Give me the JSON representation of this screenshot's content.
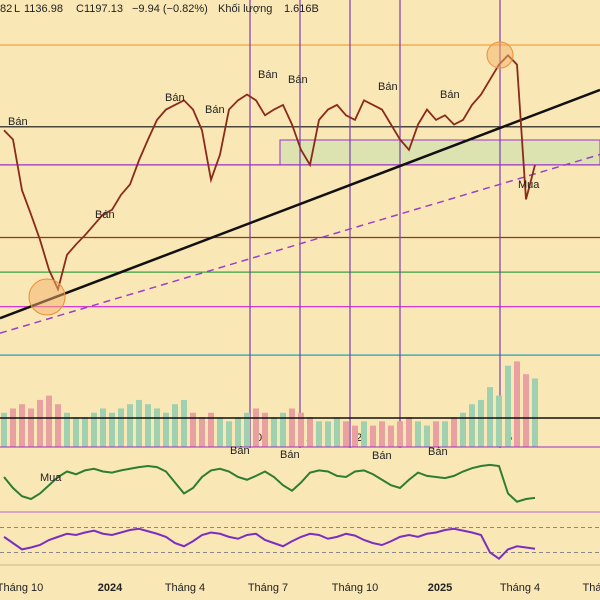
{
  "header": [
    "82",
    "L",
    "1136.98",
    "C",
    "1197.13",
    "−9.94 (−0.82%)",
    "Khối lượng",
    "1.616B"
  ],
  "x_axis_labels": [
    "Tháng 10",
    "2024",
    "Tháng 4",
    "Tháng 7",
    "Tháng 10",
    "2025",
    "Tháng 4",
    "Thá"
  ],
  "markers": [
    "0",
    "1",
    "2",
    "3",
    "5"
  ],
  "chart_data": [
    {
      "type": "line",
      "color": "#8b2a1a",
      "ylim": [
        1000,
        1340
      ],
      "values": [
        1227,
        1219,
        1175,
        1154,
        1132,
        1106,
        1089,
        1119,
        1128,
        1136,
        1145,
        1154,
        1158,
        1171,
        1180,
        1201,
        1219,
        1236,
        1245,
        1249,
        1253,
        1245,
        1227,
        1184,
        1206,
        1245,
        1253,
        1258,
        1253,
        1240,
        1245,
        1249,
        1232,
        1210,
        1197,
        1236,
        1245,
        1249,
        1240,
        1236,
        1253,
        1249,
        1245,
        1232,
        1219,
        1210,
        1232,
        1245,
        1236,
        1240,
        1232,
        1236,
        1249,
        1258,
        1271,
        1284,
        1292,
        1284,
        1167,
        1197
      ],
      "levels": [
        {
          "value": 1301,
          "color": "#f4a340"
        },
        {
          "value": 1230,
          "color": "#111111"
        },
        {
          "value": 1197,
          "color": "#9b30c8"
        },
        {
          "value": 1134,
          "color": "#8b3a1a"
        },
        {
          "value": 1104,
          "color": "#3aa040"
        },
        {
          "value": 1074,
          "color": "#d020d0"
        },
        {
          "value": 1032,
          "color": "#20a0c0"
        }
      ],
      "trendlines": [
        {
          "start": 1064,
          "end": 1262,
          "color": "#111111",
          "dashed": false
        },
        {
          "start": 1051,
          "end": 1206,
          "color": "#9b40c8",
          "dashed": true
        }
      ],
      "annotations": [
        "Bán",
        "Bán",
        "Bán",
        "Bán",
        "Bán",
        "Bán",
        "Bán",
        "Mua",
        "Bán"
      ]
    },
    {
      "type": "bar",
      "ylim": [
        0,
        2.5
      ],
      "colors": [
        "#e8a0a0",
        "#9fd0b0"
      ],
      "values": [
        0.8,
        0.9,
        1.0,
        0.9,
        1.1,
        1.2,
        1.0,
        0.8,
        0.7,
        0.7,
        0.8,
        0.9,
        0.8,
        0.9,
        1.0,
        1.1,
        1.0,
        0.9,
        0.8,
        1.0,
        1.1,
        0.8,
        0.7,
        0.8,
        0.7,
        0.6,
        0.7,
        0.8,
        0.9,
        0.8,
        0.7,
        0.8,
        0.9,
        0.8,
        0.7,
        0.6,
        0.6,
        0.7,
        0.6,
        0.5,
        0.6,
        0.5,
        0.6,
        0.5,
        0.6,
        0.7,
        0.6,
        0.5,
        0.6,
        0.6,
        0.7,
        0.8,
        1.0,
        1.1,
        1.4,
        1.2,
        1.9,
        2.0,
        1.7,
        1.6
      ]
    },
    {
      "type": "line",
      "color": "#2e7d32",
      "ylim": [
        0,
        100
      ],
      "values": [
        60,
        40,
        25,
        20,
        30,
        45,
        60,
        70,
        65,
        72,
        75,
        70,
        68,
        72,
        75,
        78,
        80,
        78,
        70,
        50,
        30,
        40,
        60,
        72,
        75,
        70,
        60,
        55,
        62,
        70,
        60,
        45,
        35,
        50,
        68,
        72,
        70,
        62,
        60,
        70,
        72,
        65,
        55,
        45,
        40,
        55,
        68,
        62,
        60,
        58,
        62,
        70,
        76,
        80,
        82,
        80,
        30,
        15,
        20,
        22
      ],
      "annotations": [
        "Bán",
        "Bán",
        "Bán",
        "Bán",
        "Mua"
      ]
    },
    {
      "type": "line",
      "color": "#7b2fbf",
      "ylim": [
        10,
        90
      ],
      "levels": [
        70,
        30
      ],
      "values": [
        55,
        45,
        35,
        38,
        42,
        50,
        55,
        60,
        58,
        62,
        65,
        60,
        58,
        62,
        66,
        68,
        64,
        60,
        55,
        45,
        40,
        48,
        58,
        62,
        60,
        55,
        52,
        58,
        60,
        50,
        45,
        40,
        48,
        55,
        60,
        58,
        52,
        55,
        60,
        57,
        50,
        45,
        42,
        48,
        55,
        58,
        55,
        60,
        62,
        66,
        68,
        65,
        62,
        58,
        30,
        20,
        35,
        40,
        38,
        36
      ]
    }
  ]
}
